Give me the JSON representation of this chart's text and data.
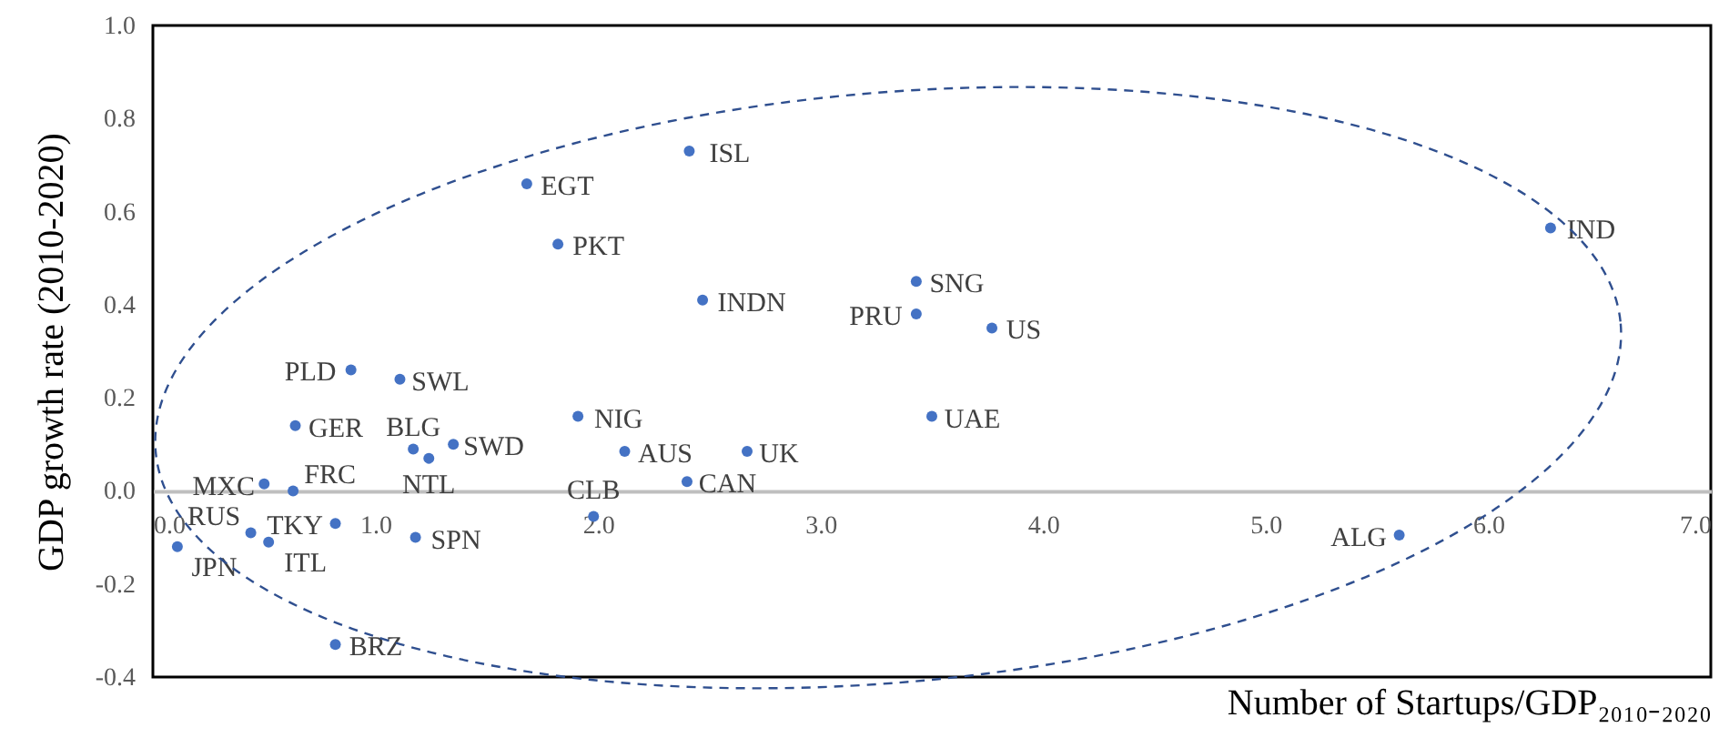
{
  "chart_data": {
    "type": "scatter",
    "xlabel": "Number of Startups/GDP₂₀₁₀₋₂₀₂₀",
    "ylabel": "GDP growth rate (2010-2020)",
    "xlim": [
      0,
      7
    ],
    "xticks": [
      {
        "value": 0,
        "label": "0.0"
      },
      {
        "value": 1,
        "label": "1.0"
      },
      {
        "value": 2,
        "label": "2.0"
      },
      {
        "value": 3,
        "label": "3.0"
      },
      {
        "value": 4,
        "label": "4.0"
      },
      {
        "value": 5,
        "label": "5.0"
      },
      {
        "value": 6,
        "label": "6.0"
      },
      {
        "value": 7,
        "label": "7.0"
      }
    ],
    "ylim": [
      -0.4,
      1
    ],
    "yticks": [
      {
        "value": -0.4,
        "label": "-0.4"
      },
      {
        "value": -0.2,
        "label": "-0.2"
      },
      {
        "value": 0,
        "label": "0.0"
      },
      {
        "value": 0.2,
        "label": "0.2"
      },
      {
        "value": 0.4,
        "label": "0.4"
      },
      {
        "value": 0.6,
        "label": "0.6"
      },
      {
        "value": 0.8,
        "label": "0.8"
      },
      {
        "value": 1,
        "label": "1.0"
      }
    ],
    "grid": false,
    "legend": false,
    "marker": "circle",
    "series": [
      {
        "name": "JPN",
        "color": "#4472c4",
        "x": [
          0.11
        ],
        "values": [
          -0.12
        ]
      },
      {
        "name": "MXC",
        "color": "#4472c4",
        "x": [
          0.5
        ],
        "values": [
          0.015
        ]
      },
      {
        "name": "FRC",
        "color": "#4472c4",
        "x": [
          0.63
        ],
        "values": [
          0.0
        ]
      },
      {
        "name": "GER",
        "color": "#4472c4",
        "x": [
          0.64
        ],
        "values": [
          0.14
        ]
      },
      {
        "name": "RUS",
        "color": "#4472c4",
        "x": [
          0.44
        ],
        "values": [
          -0.09
        ]
      },
      {
        "name": "ITL",
        "color": "#4472c4",
        "x": [
          0.52
        ],
        "values": [
          -0.11
        ]
      },
      {
        "name": "TKY",
        "color": "#4472c4",
        "x": [
          0.82
        ],
        "values": [
          -0.07
        ]
      },
      {
        "name": "BRZ",
        "color": "#4472c4",
        "x": [
          0.82
        ],
        "values": [
          -0.33
        ]
      },
      {
        "name": "PLD",
        "color": "#4472c4",
        "x": [
          0.89
        ],
        "values": [
          0.26
        ]
      },
      {
        "name": "SWL",
        "color": "#4472c4",
        "x": [
          1.11
        ],
        "values": [
          0.24
        ]
      },
      {
        "name": "SPN",
        "color": "#4472c4",
        "x": [
          1.18
        ],
        "values": [
          -0.1
        ]
      },
      {
        "name": "BLG",
        "color": "#4472c4",
        "x": [
          1.17
        ],
        "values": [
          0.09
        ]
      },
      {
        "name": "NTL",
        "color": "#4472c4",
        "x": [
          1.24
        ],
        "values": [
          0.07
        ]
      },
      {
        "name": "SWD",
        "color": "#4472c4",
        "x": [
          1.35
        ],
        "values": [
          0.1
        ]
      },
      {
        "name": "EGT",
        "color": "#4472c4",
        "x": [
          1.68
        ],
        "values": [
          0.66
        ]
      },
      {
        "name": "PKT",
        "color": "#4472c4",
        "x": [
          1.82
        ],
        "values": [
          0.53
        ]
      },
      {
        "name": "NIG",
        "color": "#4472c4",
        "x": [
          1.91
        ],
        "values": [
          0.16
        ]
      },
      {
        "name": "CLB",
        "color": "#4472c4",
        "x": [
          1.98
        ],
        "values": [
          -0.055
        ]
      },
      {
        "name": "AUS",
        "color": "#4472c4",
        "x": [
          2.12
        ],
        "values": [
          0.085
        ]
      },
      {
        "name": "CAN",
        "color": "#4472c4",
        "x": [
          2.4
        ],
        "values": [
          0.02
        ]
      },
      {
        "name": "ISL",
        "color": "#4472c4",
        "x": [
          2.41
        ],
        "values": [
          0.73
        ]
      },
      {
        "name": "INDN",
        "color": "#4472c4",
        "x": [
          2.47
        ],
        "values": [
          0.41
        ]
      },
      {
        "name": "UK",
        "color": "#4472c4",
        "x": [
          2.67
        ],
        "values": [
          0.085
        ]
      },
      {
        "name": "SNG",
        "color": "#4472c4",
        "x": [
          3.43
        ],
        "values": [
          0.45
        ]
      },
      {
        "name": "PRU",
        "color": "#4472c4",
        "x": [
          3.43
        ],
        "values": [
          0.38
        ]
      },
      {
        "name": "UAE",
        "color": "#4472c4",
        "x": [
          3.5
        ],
        "values": [
          0.16
        ]
      },
      {
        "name": "US",
        "color": "#4472c4",
        "x": [
          3.77
        ],
        "values": [
          0.35
        ]
      },
      {
        "name": "ALG",
        "color": "#4472c4",
        "x": [
          5.6
        ],
        "values": [
          -0.095
        ]
      },
      {
        "name": "IND",
        "color": "#4472c4",
        "x": [
          6.28
        ],
        "values": [
          0.565
        ]
      }
    ]
  }
}
